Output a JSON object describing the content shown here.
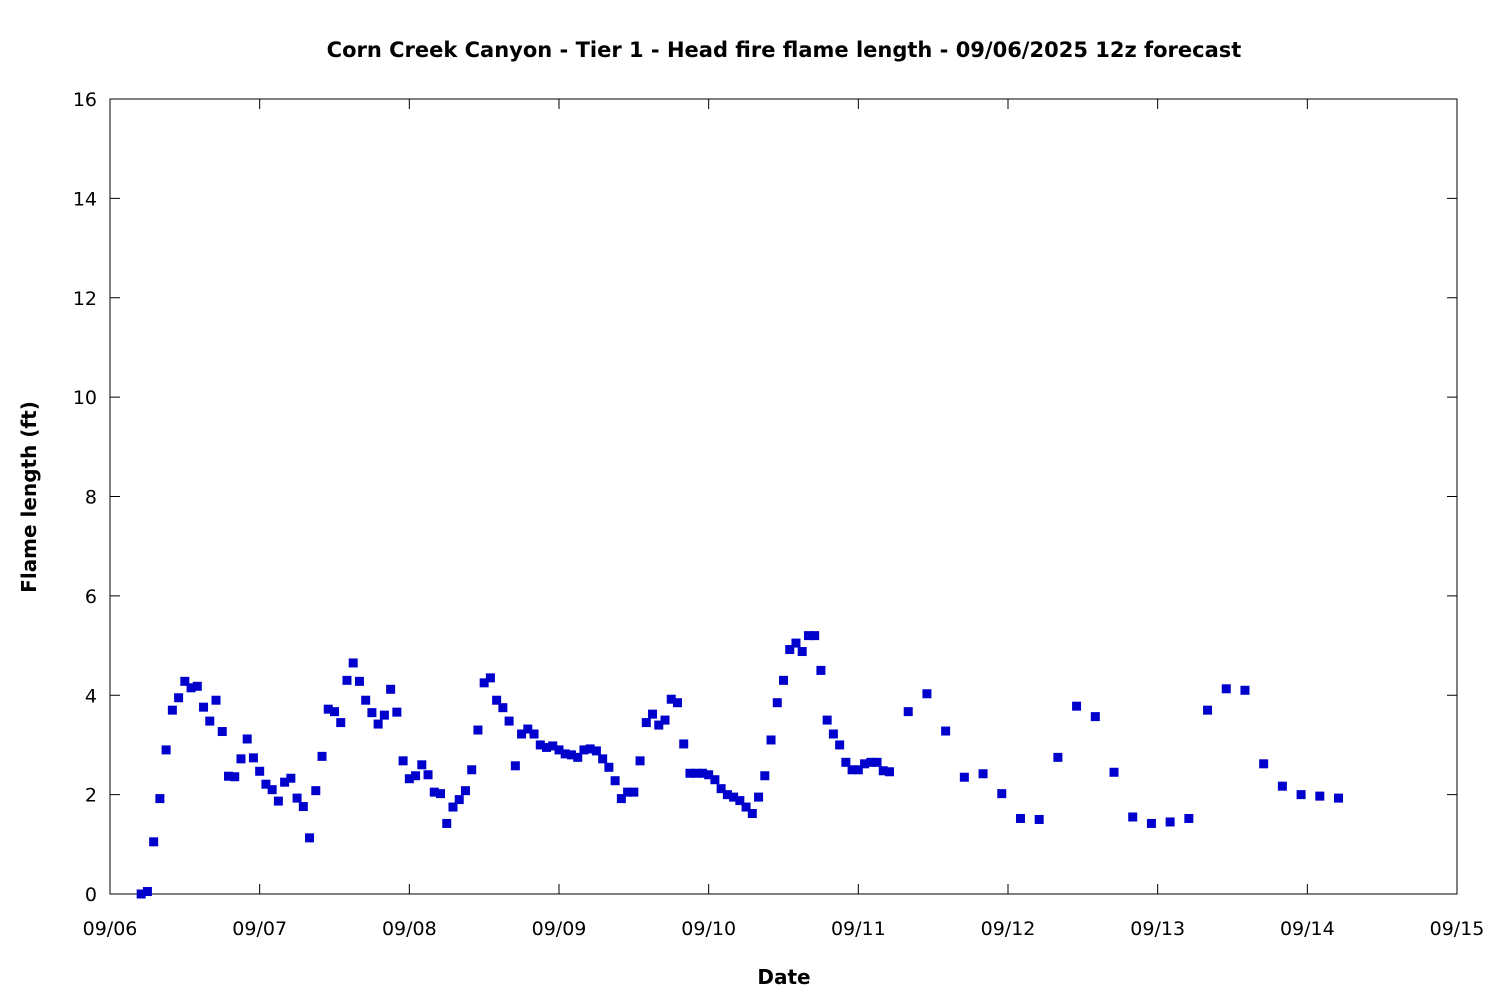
{
  "chart_data": {
    "type": "scatter",
    "title": "Corn Creek Canyon - Tier 1 - Head fire flame length - 09/06/2025 12z forecast",
    "xlabel": "Date",
    "ylabel": "Flame length (ft)",
    "xlim": [
      "09/06",
      "09/15"
    ],
    "ylim": [
      0,
      16
    ],
    "x_ticks": [
      "09/06",
      "09/07",
      "09/08",
      "09/09",
      "09/10",
      "09/11",
      "09/12",
      "09/13",
      "09/14",
      "09/15"
    ],
    "y_ticks": [
      0,
      2,
      4,
      6,
      8,
      10,
      12,
      14,
      16
    ],
    "grid": false,
    "marker": "square",
    "color": "#0000cc",
    "points": [
      [
        "09/06 05:00",
        0.0
      ],
      [
        "09/06 06:00",
        0.05
      ],
      [
        "09/06 07:00",
        1.05
      ],
      [
        "09/06 08:00",
        1.92
      ],
      [
        "09/06 09:00",
        2.9
      ],
      [
        "09/06 10:00",
        3.7
      ],
      [
        "09/06 11:00",
        3.95
      ],
      [
        "09/06 12:00",
        4.28
      ],
      [
        "09/06 13:00",
        4.15
      ],
      [
        "09/06 14:00",
        4.18
      ],
      [
        "09/06 15:00",
        3.76
      ],
      [
        "09/06 16:00",
        3.48
      ],
      [
        "09/06 17:00",
        3.9
      ],
      [
        "09/06 18:00",
        3.27
      ],
      [
        "09/06 19:00",
        2.37
      ],
      [
        "09/06 20:00",
        2.36
      ],
      [
        "09/06 21:00",
        2.72
      ],
      [
        "09/06 22:00",
        3.12
      ],
      [
        "09/06 23:00",
        2.74
      ],
      [
        "09/07 00:00",
        2.47
      ],
      [
        "09/07 01:00",
        2.21
      ],
      [
        "09/07 02:00",
        2.1
      ],
      [
        "09/07 03:00",
        1.87
      ],
      [
        "09/07 04:00",
        2.25
      ],
      [
        "09/07 05:00",
        2.33
      ],
      [
        "09/07 06:00",
        1.93
      ],
      [
        "09/07 07:00",
        1.76
      ],
      [
        "09/07 08:00",
        1.13
      ],
      [
        "09/07 09:00",
        2.08
      ],
      [
        "09/07 10:00",
        2.77
      ],
      [
        "09/07 11:00",
        3.72
      ],
      [
        "09/07 12:00",
        3.67
      ],
      [
        "09/07 13:00",
        3.45
      ],
      [
        "09/07 14:00",
        4.3
      ],
      [
        "09/07 15:00",
        4.65
      ],
      [
        "09/07 16:00",
        4.28
      ],
      [
        "09/07 17:00",
        3.9
      ],
      [
        "09/07 18:00",
        3.65
      ],
      [
        "09/07 19:00",
        3.42
      ],
      [
        "09/07 20:00",
        3.6
      ],
      [
        "09/07 21:00",
        4.12
      ],
      [
        "09/07 22:00",
        3.66
      ],
      [
        "09/07 23:00",
        2.68
      ],
      [
        "09/08 00:00",
        2.32
      ],
      [
        "09/08 01:00",
        2.38
      ],
      [
        "09/08 02:00",
        2.6
      ],
      [
        "09/08 03:00",
        2.4
      ],
      [
        "09/08 04:00",
        2.05
      ],
      [
        "09/08 05:00",
        2.02
      ],
      [
        "09/08 06:00",
        1.42
      ],
      [
        "09/08 07:00",
        1.75
      ],
      [
        "09/08 08:00",
        1.9
      ],
      [
        "09/08 09:00",
        2.08
      ],
      [
        "09/08 10:00",
        2.5
      ],
      [
        "09/08 11:00",
        3.3
      ],
      [
        "09/08 12:00",
        4.25
      ],
      [
        "09/08 13:00",
        4.35
      ],
      [
        "09/08 14:00",
        3.9
      ],
      [
        "09/08 15:00",
        3.75
      ],
      [
        "09/08 16:00",
        3.48
      ],
      [
        "09/08 17:00",
        2.58
      ],
      [
        "09/08 18:00",
        3.22
      ],
      [
        "09/08 19:00",
        3.32
      ],
      [
        "09/08 20:00",
        3.22
      ],
      [
        "09/08 21:00",
        3.0
      ],
      [
        "09/08 22:00",
        2.95
      ],
      [
        "09/08 23:00",
        2.98
      ],
      [
        "09/09 00:00",
        2.9
      ],
      [
        "09/09 01:00",
        2.82
      ],
      [
        "09/09 02:00",
        2.8
      ],
      [
        "09/09 03:00",
        2.75
      ],
      [
        "09/09 04:00",
        2.9
      ],
      [
        "09/09 05:00",
        2.92
      ],
      [
        "09/09 06:00",
        2.88
      ],
      [
        "09/09 07:00",
        2.72
      ],
      [
        "09/09 08:00",
        2.55
      ],
      [
        "09/09 09:00",
        2.28
      ],
      [
        "09/09 10:00",
        1.92
      ],
      [
        "09/09 11:00",
        2.05
      ],
      [
        "09/09 12:00",
        2.05
      ],
      [
        "09/09 13:00",
        2.68
      ],
      [
        "09/09 14:00",
        3.45
      ],
      [
        "09/09 15:00",
        3.62
      ],
      [
        "09/09 16:00",
        3.4
      ],
      [
        "09/09 17:00",
        3.5
      ],
      [
        "09/09 18:00",
        3.92
      ],
      [
        "09/09 19:00",
        3.85
      ],
      [
        "09/09 20:00",
        3.02
      ],
      [
        "09/09 21:00",
        2.43
      ],
      [
        "09/09 22:00",
        2.43
      ],
      [
        "09/09 23:00",
        2.43
      ],
      [
        "09/10 00:00",
        2.4
      ],
      [
        "09/10 01:00",
        2.3
      ],
      [
        "09/10 02:00",
        2.12
      ],
      [
        "09/10 03:00",
        2.0
      ],
      [
        "09/10 04:00",
        1.95
      ],
      [
        "09/10 05:00",
        1.88
      ],
      [
        "09/10 06:00",
        1.75
      ],
      [
        "09/10 07:00",
        1.62
      ],
      [
        "09/10 08:00",
        1.95
      ],
      [
        "09/10 09:00",
        2.38
      ],
      [
        "09/10 10:00",
        3.1
      ],
      [
        "09/10 11:00",
        3.85
      ],
      [
        "09/10 12:00",
        4.3
      ],
      [
        "09/10 13:00",
        4.92
      ],
      [
        "09/10 14:00",
        5.05
      ],
      [
        "09/10 15:00",
        4.88
      ],
      [
        "09/10 16:00",
        5.2
      ],
      [
        "09/10 17:00",
        5.2
      ],
      [
        "09/10 18:00",
        4.5
      ],
      [
        "09/10 19:00",
        3.5
      ],
      [
        "09/10 20:00",
        3.22
      ],
      [
        "09/10 21:00",
        3.0
      ],
      [
        "09/10 22:00",
        2.65
      ],
      [
        "09/10 23:00",
        2.5
      ],
      [
        "09/11 00:00",
        2.5
      ],
      [
        "09/11 01:00",
        2.62
      ],
      [
        "09/11 02:00",
        2.65
      ],
      [
        "09/11 03:00",
        2.65
      ],
      [
        "09/11 04:00",
        2.48
      ],
      [
        "09/11 05:00",
        2.46
      ],
      [
        "09/11 08:00",
        3.67
      ],
      [
        "09/11 11:00",
        4.03
      ],
      [
        "09/11 14:00",
        3.28
      ],
      [
        "09/11 17:00",
        2.35
      ],
      [
        "09/11 20:00",
        2.42
      ],
      [
        "09/11 23:00",
        2.02
      ],
      [
        "09/12 02:00",
        1.52
      ],
      [
        "09/12 05:00",
        1.5
      ],
      [
        "09/12 08:00",
        2.75
      ],
      [
        "09/12 11:00",
        3.78
      ],
      [
        "09/12 14:00",
        3.57
      ],
      [
        "09/12 17:00",
        2.45
      ],
      [
        "09/12 20:00",
        1.55
      ],
      [
        "09/12 23:00",
        1.42
      ],
      [
        "09/13 02:00",
        1.45
      ],
      [
        "09/13 05:00",
        1.52
      ],
      [
        "09/13 08:00",
        3.7
      ],
      [
        "09/13 11:00",
        4.13
      ],
      [
        "09/13 14:00",
        4.1
      ],
      [
        "09/13 17:00",
        2.62
      ],
      [
        "09/13 20:00",
        2.17
      ],
      [
        "09/13 23:00",
        2.0
      ],
      [
        "09/14 02:00",
        1.97
      ],
      [
        "09/14 05:00",
        1.93
      ]
    ]
  }
}
